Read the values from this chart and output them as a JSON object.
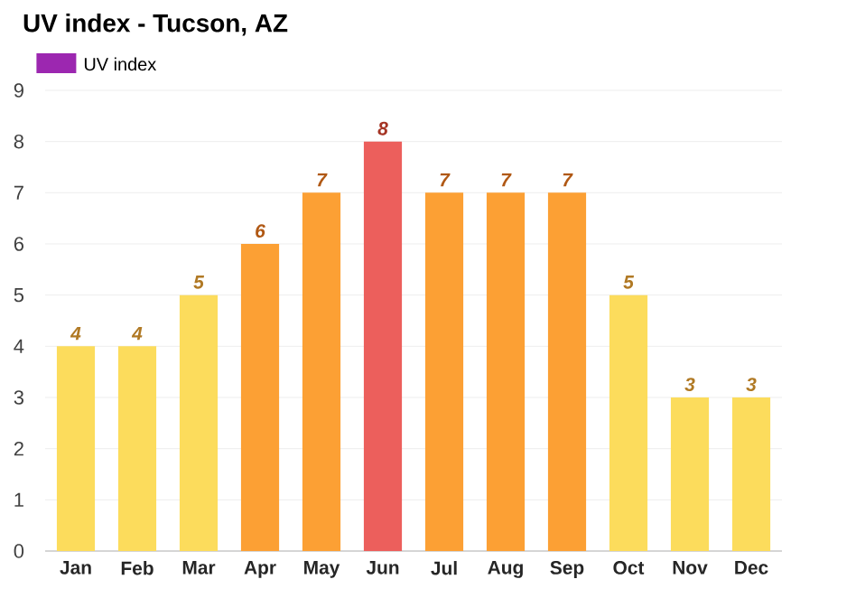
{
  "chart_data": {
    "type": "bar",
    "title": "UV index - Tucson, AZ",
    "categories": [
      "Jan",
      "Feb",
      "Mar",
      "Apr",
      "May",
      "Jun",
      "Jul",
      "Aug",
      "Sep",
      "Oct",
      "Nov",
      "Dec"
    ],
    "series": [
      {
        "name": "UV index",
        "color": "#9c27b0",
        "values": [
          4,
          4,
          5,
          6,
          7,
          8,
          7,
          7,
          7,
          5,
          3,
          3
        ],
        "colors": [
          "#fcdc5c",
          "#fcdc5c",
          "#fcdc5c",
          "#fca034",
          "#fca034",
          "#ec5f5c",
          "#fca034",
          "#fca034",
          "#fca034",
          "#fcdc5c",
          "#fcdc5c",
          "#fcdc5c"
        ]
      }
    ],
    "ylim": [
      0,
      9
    ],
    "yticks": [
      0,
      1,
      2,
      3,
      4,
      5,
      6,
      7,
      8,
      9
    ],
    "grid": "y",
    "legend": "top left",
    "data_labels": true
  }
}
